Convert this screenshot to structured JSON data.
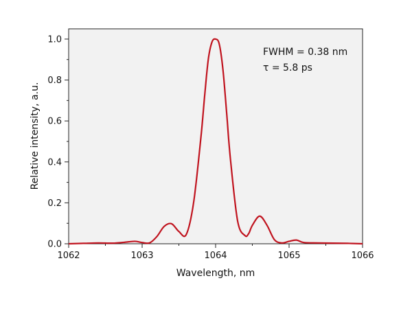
{
  "chart_data": {
    "type": "line",
    "title": "",
    "xlabel": "Wavelength, nm",
    "ylabel": "Relative intensity, a.u.",
    "xlim": [
      1062,
      1066
    ],
    "ylim": [
      0,
      1.05
    ],
    "xticks": [
      1062,
      1063,
      1064,
      1065,
      1066
    ],
    "xtick_labels": [
      "1062",
      "1063",
      "1064",
      "1065",
      "1066"
    ],
    "yticks": [
      0,
      0.2,
      0.4,
      0.6,
      0.8,
      1.0
    ],
    "ytick_labels": [
      "0.0",
      "0.2",
      "0.4",
      "0.6",
      "0.8",
      "1.0"
    ],
    "grid": false,
    "plot_background": "#f2f2f2",
    "line_color": "#c0131e",
    "annotations": [
      "FWHM = 0.38 nm",
      "τ = 5.8 ps"
    ],
    "series": [
      {
        "x": [
          1062.0,
          1062.2,
          1062.4,
          1062.6,
          1062.75,
          1062.9,
          1063.0,
          1063.1,
          1063.2,
          1063.3,
          1063.4,
          1063.5,
          1063.6,
          1063.7,
          1063.8,
          1063.85,
          1063.9,
          1063.95,
          1064.0,
          1064.05,
          1064.1,
          1064.15,
          1064.2,
          1064.3,
          1064.4,
          1064.45,
          1064.5,
          1064.6,
          1064.7,
          1064.8,
          1064.9,
          1065.0,
          1065.1,
          1065.2,
          1065.4,
          1065.6,
          1065.8,
          1066.0
        ],
        "y": [
          0.0,
          0.002,
          0.004,
          0.003,
          0.007,
          0.012,
          0.006,
          0.004,
          0.035,
          0.085,
          0.098,
          0.06,
          0.045,
          0.2,
          0.52,
          0.72,
          0.9,
          0.985,
          1.0,
          0.975,
          0.85,
          0.64,
          0.42,
          0.11,
          0.04,
          0.05,
          0.09,
          0.135,
          0.09,
          0.02,
          0.004,
          0.012,
          0.018,
          0.006,
          0.004,
          0.003,
          0.002,
          0.0
        ]
      }
    ]
  }
}
